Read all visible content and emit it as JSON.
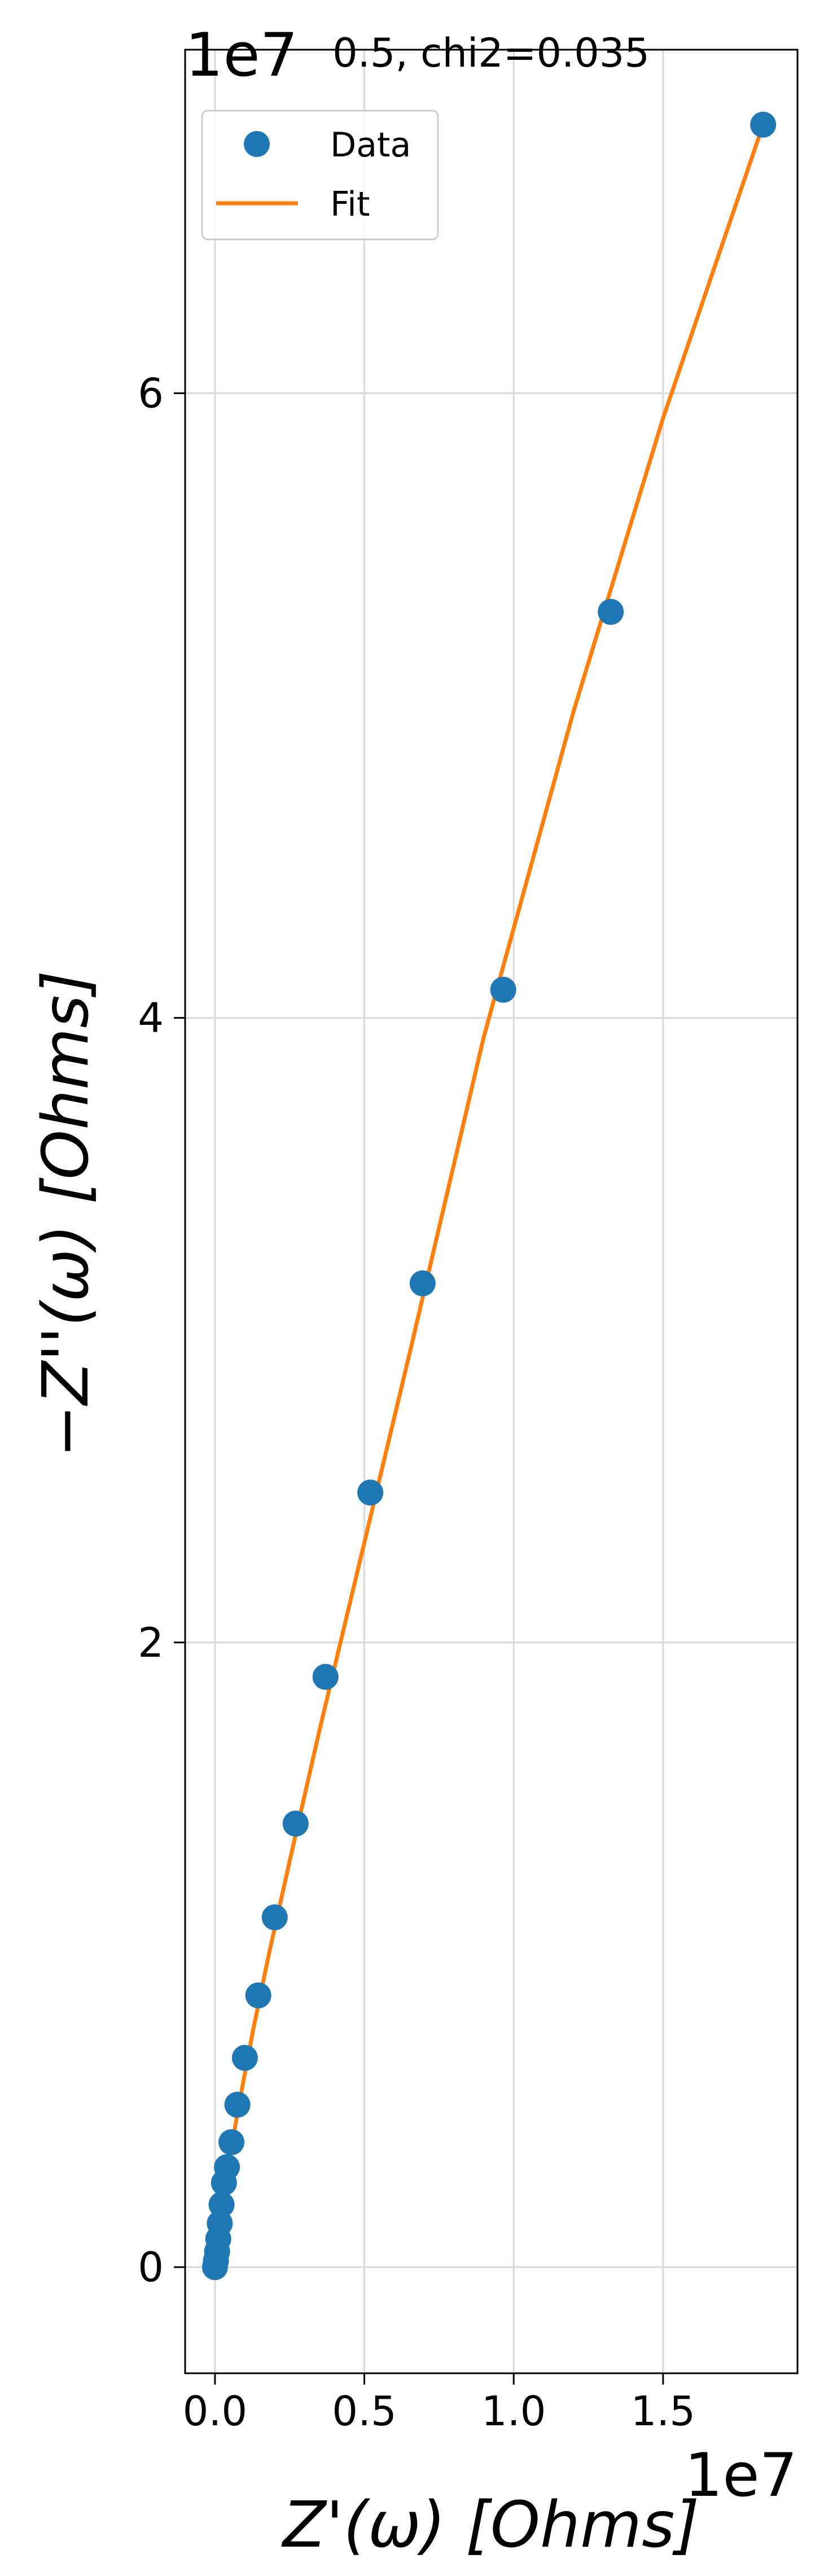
{
  "chart_data": {
    "type": "scatter",
    "title": "0.5, chi2=0.035",
    "xlabel": "Z'(ω) [Ohms]",
    "ylabel": "−Z''(ω) [Ohms]",
    "x_offset_text": "1e7",
    "y_offset_text": "1e7",
    "xlim": [
      -0.1,
      1.95
    ],
    "ylim": [
      -0.34,
      7.1
    ],
    "x_ticks": [
      0.0,
      0.5,
      1.0,
      1.5
    ],
    "y_ticks": [
      0,
      2,
      4,
      6
    ],
    "x_tick_labels": [
      "0.0",
      "0.5",
      "1.0",
      "1.5"
    ],
    "y_tick_labels": [
      "0",
      "2",
      "4",
      "6"
    ],
    "grid": true,
    "legend_position": "upper left",
    "colors": {
      "data": "#1f77b4",
      "fit": "#ff7f0e"
    },
    "series": [
      {
        "name": "Data",
        "kind": "markers",
        "x": [
          0.0,
          0.003,
          0.007,
          0.011,
          0.016,
          0.022,
          0.03,
          0.04,
          0.055,
          0.075,
          0.1,
          0.145,
          0.2,
          0.27,
          0.37,
          0.52,
          0.695,
          0.965,
          1.325,
          1.835
        ],
        "y": [
          0.0,
          0.02,
          0.05,
          0.09,
          0.14,
          0.2,
          0.27,
          0.32,
          0.4,
          0.52,
          0.67,
          0.87,
          1.12,
          1.42,
          1.89,
          2.48,
          3.15,
          4.09,
          5.3,
          6.86
        ]
      },
      {
        "name": "Fit",
        "kind": "line",
        "x": [
          0.0,
          0.003,
          0.008,
          0.015,
          0.025,
          0.04,
          0.06,
          0.09,
          0.13,
          0.18,
          0.25,
          0.35,
          0.48,
          0.65,
          0.9,
          1.2,
          1.5,
          1.835
        ],
        "y": [
          0.0,
          0.03,
          0.07,
          0.12,
          0.19,
          0.29,
          0.41,
          0.57,
          0.77,
          1.0,
          1.3,
          1.72,
          2.24,
          2.92,
          3.94,
          4.98,
          5.92,
          6.86
        ]
      }
    ]
  }
}
